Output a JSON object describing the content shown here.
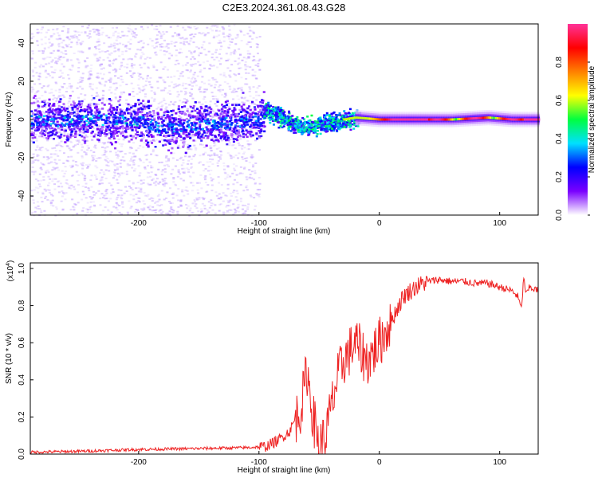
{
  "title": "C2E3.2024.361.08.43.G28",
  "chart_data": [
    {
      "type": "heatmap",
      "xlabel": "Height of straight line (km)",
      "ylabel": "Frequency (Hz)",
      "xlim": [
        -290,
        132
      ],
      "ylim": [
        -50,
        50
      ],
      "x_ticks": [
        -200,
        -100,
        0,
        100
      ],
      "y_ticks": [
        -40,
        -20,
        0,
        20,
        40
      ],
      "colorbar": {
        "label": "Normalized spectral amplitude",
        "range": [
          0,
          1
        ],
        "ticks": [
          "0.0",
          "0.2",
          "0.4",
          "0.6",
          "0.8"
        ],
        "ticks_v": [
          0,
          0.2,
          0.4,
          0.6,
          0.8
        ],
        "colors": [
          "#ffffff",
          "#7a00ff",
          "#0000ff",
          "#00e0ff",
          "#00ff40",
          "#ffff00",
          "#ff8000",
          "#ff0000",
          "#ff3399"
        ]
      },
      "ridge": [
        {
          "x": -290,
          "f": 0.0
        },
        {
          "x": -200,
          "f": 0.0
        },
        {
          "x": -185,
          "f": -4.0
        },
        {
          "x": -100,
          "f": 0.0
        },
        {
          "x": -95,
          "f": 5.0
        },
        {
          "x": -85,
          "f": 2.5
        },
        {
          "x": -75,
          "f": -1.0
        },
        {
          "x": -60,
          "f": -4.0
        },
        {
          "x": -45,
          "f": -1.5
        },
        {
          "x": -30,
          "f": 0.0
        },
        {
          "x": -20,
          "f": 1.0
        },
        {
          "x": 0,
          "f": 0.0
        },
        {
          "x": 60,
          "f": 0.0
        },
        {
          "x": 90,
          "f": 1.0
        },
        {
          "x": 110,
          "f": 0.0
        },
        {
          "x": 132,
          "f": 0.0
        }
      ]
    },
    {
      "type": "line",
      "xlabel": "Height of straight line (km)",
      "ylabel": "SNR (10 * v/v)",
      "y_multiplier": "(x10",
      "y_multiplier_exp": "4",
      "xlim": [
        -290,
        132
      ],
      "ylim": [
        0,
        1.03
      ],
      "x_ticks": [
        -200,
        -100,
        0,
        100
      ],
      "y_ticks": [
        0.0,
        0.2,
        0.4,
        0.6,
        0.8,
        1.0
      ],
      "y_tick_labels": [
        "0.0",
        "0.2",
        "0.4",
        "0.6",
        "0.8",
        "1.0"
      ],
      "series": [
        {
          "color": "#ee2222",
          "x": [
            -290,
            -250,
            -200,
            -150,
            -110,
            -95,
            -85,
            -75,
            -65,
            -60,
            -55,
            -50,
            -45,
            -40,
            -35,
            -30,
            -25,
            -20,
            -15,
            -10,
            -5,
            0,
            10,
            20,
            30,
            40,
            50,
            60,
            70,
            80,
            90,
            100,
            110,
            115,
            118,
            120,
            122,
            125,
            132
          ],
          "y": [
            0.01,
            0.015,
            0.025,
            0.03,
            0.035,
            0.04,
            0.07,
            0.12,
            0.25,
            0.45,
            0.2,
            0.05,
            0.08,
            0.25,
            0.4,
            0.5,
            0.55,
            0.6,
            0.55,
            0.5,
            0.55,
            0.6,
            0.72,
            0.85,
            0.9,
            0.93,
            0.94,
            0.93,
            0.93,
            0.92,
            0.92,
            0.9,
            0.88,
            0.85,
            0.78,
            0.95,
            0.86,
            0.9,
            0.88
          ]
        }
      ]
    }
  ]
}
